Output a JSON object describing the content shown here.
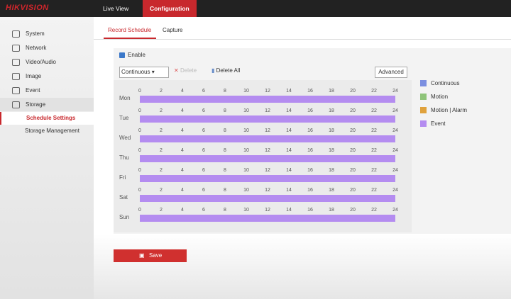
{
  "header": {
    "brand": "HIKVISION",
    "nav": [
      "Live View",
      "Configuration"
    ]
  },
  "sidebar": {
    "items": [
      "System",
      "Network",
      "Video/Audio",
      "Image",
      "Event",
      "Storage"
    ],
    "subitems": [
      "Schedule Settings",
      "Storage Management"
    ]
  },
  "tabs": [
    "Record Schedule",
    "Capture"
  ],
  "enable": "Enable",
  "toolbar": {
    "select": "Continuous",
    "delete": "Delete",
    "delete_all": "Delete All",
    "advanced": "Advanced"
  },
  "schedule": {
    "range": [
      0,
      24
    ],
    "hours": [
      0,
      2,
      4,
      6,
      8,
      10,
      12,
      14,
      16,
      18,
      20,
      22,
      24
    ],
    "color": "#b48cf0",
    "rows": [
      {
        "day": "Mon",
        "start": 0,
        "end": 24
      },
      {
        "day": "Tue",
        "start": 0,
        "end": 24
      },
      {
        "day": "Wed",
        "start": 0,
        "end": 24
      },
      {
        "day": "Thu",
        "start": 0,
        "end": 24
      },
      {
        "day": "Fri",
        "start": 0,
        "end": 24
      },
      {
        "day": "Sat",
        "start": 0,
        "end": 24
      },
      {
        "day": "Sun",
        "start": 0,
        "end": 24
      }
    ]
  },
  "legend": [
    {
      "name": "Continuous",
      "color": "#7b8fe0"
    },
    {
      "name": "Motion",
      "color": "#8fc47a"
    },
    {
      "name": "Motion | Alarm",
      "color": "#e0a23c"
    },
    {
      "name": "Event",
      "color": "#b48cf0"
    }
  ],
  "save": "Save"
}
